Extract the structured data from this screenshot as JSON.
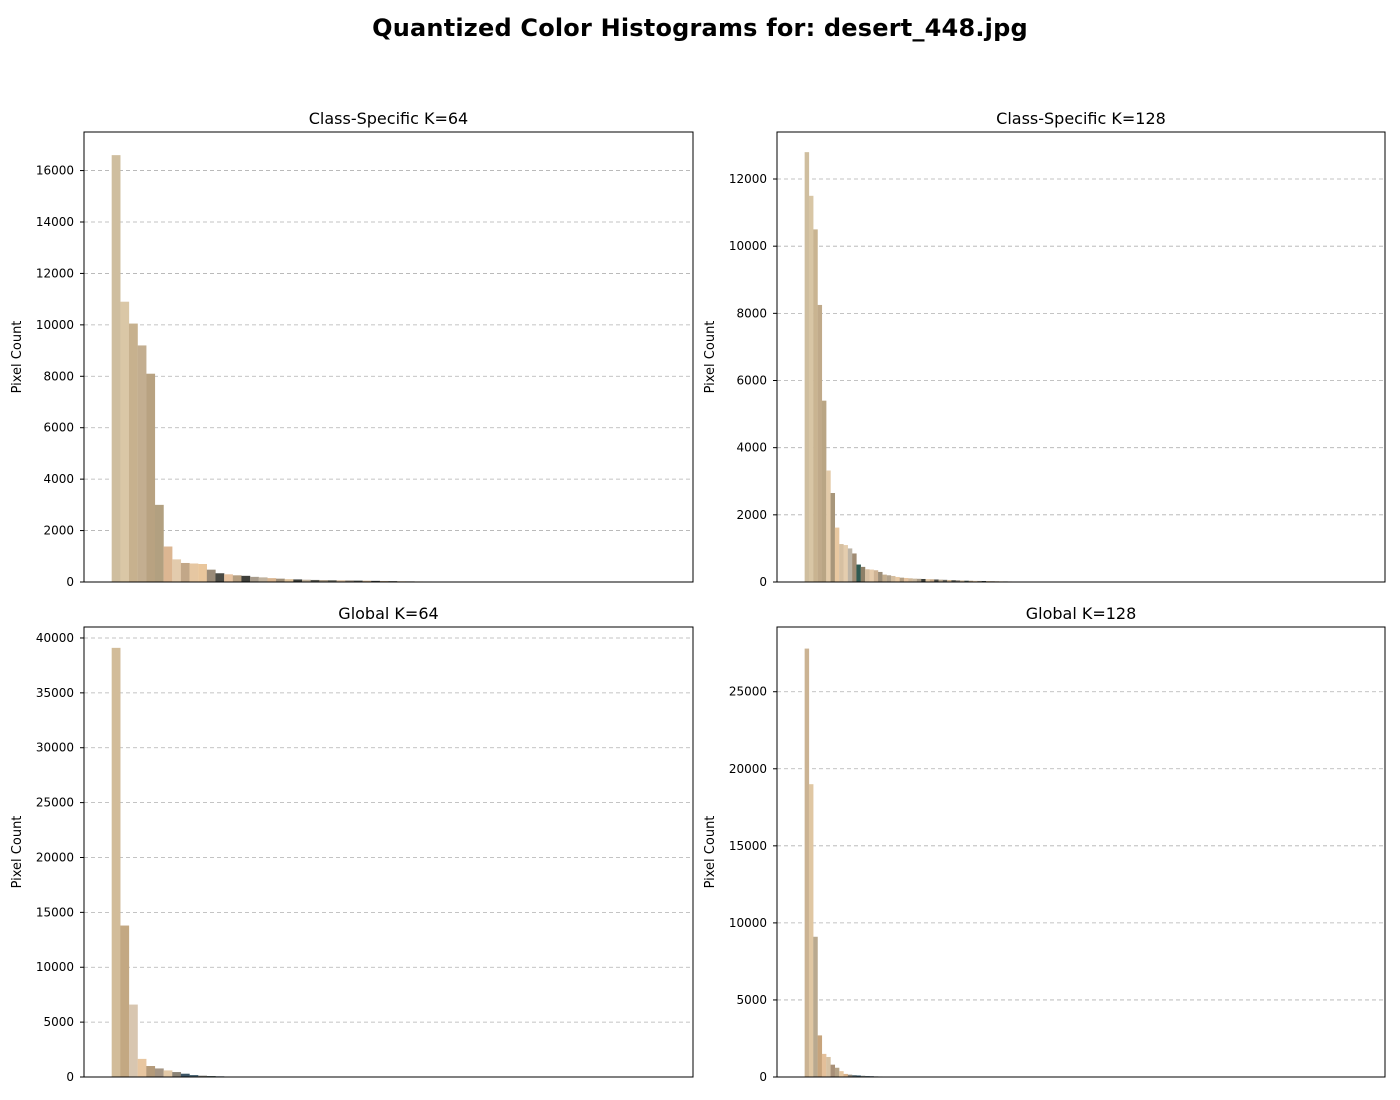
{
  "suptitle": "Quantized Color Histograms for: desert_448.jpg",
  "chart_data": [
    {
      "type": "bar",
      "title": "Class-Specific K=64",
      "xlabel": "",
      "ylabel": "Pixel Count",
      "ylim": [
        0,
        17500
      ],
      "yticks": [
        0,
        2000,
        4000,
        6000,
        8000,
        10000,
        12000,
        14000,
        16000
      ],
      "grid": "y-dashed",
      "n_bins": 64,
      "values": [
        16600,
        10900,
        10050,
        9200,
        8100,
        3000,
        1380,
        880,
        740,
        720,
        700,
        480,
        340,
        300,
        260,
        240,
        200,
        180,
        150,
        130,
        110,
        100,
        90,
        80,
        75,
        70,
        65,
        60,
        55,
        50,
        45,
        40,
        35,
        30,
        25,
        22,
        20,
        18,
        15,
        12
      ],
      "colors": [
        "#cfbe9f",
        "#dac7a6",
        "#c7b18e",
        "#c3ae90",
        "#b8a281",
        "#b2a080",
        "#dcb692",
        "#e3cbad",
        "#c2a788",
        "#e6c7a2",
        "#e9c69c",
        "#9a8b78",
        "#4a4a44",
        "#e8c3a0",
        "#b59e80",
        "#3e3f3a",
        "#a89c8c",
        "#c1b39f",
        "#d8b48f",
        "#9e8e78",
        "#e0c39b",
        "#3a3d38",
        "#bfb09a",
        "#5a5a52",
        "#a89a85",
        "#6a6a60",
        "#d1b596",
        "#8b8070",
        "#4f524c",
        "#c8a883",
        "#3c3f3b",
        "#b09a7e",
        "#5c5c55",
        "#d6bb98",
        "#7b7266",
        "#e2c9a6",
        "#a59580",
        "#4d4f49",
        "#c9b290",
        "#e5c39c"
      ]
    },
    {
      "type": "bar",
      "title": "Class-Specific K=128",
      "xlabel": "",
      "ylabel": "Pixel Count",
      "ylim": [
        0,
        13400
      ],
      "yticks": [
        0,
        2000,
        4000,
        6000,
        8000,
        10000,
        12000
      ],
      "grid": "y-dashed",
      "n_bins": 128,
      "values": [
        12800,
        11500,
        10500,
        8250,
        5400,
        3320,
        2650,
        1620,
        1130,
        1100,
        1000,
        850,
        520,
        450,
        380,
        370,
        350,
        300,
        220,
        200,
        180,
        150,
        130,
        120,
        110,
        100,
        95,
        90,
        85,
        80,
        75,
        70,
        65,
        60,
        55,
        50,
        45,
        40,
        38,
        35,
        32,
        30,
        28,
        25,
        22,
        20,
        18,
        16,
        14,
        12,
        10
      ],
      "colors": [
        "#cfbe9f",
        "#d8c6a5",
        "#c9b491",
        "#c0aa8a",
        "#b9a584",
        "#e3cba9",
        "#a8967a",
        "#e9c8a0",
        "#d6c0a2",
        "#e4cdae",
        "#bdb4a6",
        "#a08c74",
        "#2f5a52",
        "#8e8068",
        "#d9c1a3",
        "#e6cbab",
        "#cfb394",
        "#9c8e79",
        "#c4ae8f",
        "#b2a28c",
        "#d4bea0",
        "#e8c9a4",
        "#b49f83",
        "#e5c3a0",
        "#d0b89a",
        "#c9b89f",
        "#a89a86",
        "#3a3d38",
        "#e2c7a3",
        "#c7a987",
        "#4a4a44",
        "#b8a68e",
        "#6b6a62",
        "#d5b996",
        "#5b5e58",
        "#8a8276",
        "#cbb596",
        "#4c5a55",
        "#b79f80",
        "#e7cbab",
        "#9d917f",
        "#3e4540",
        "#d8bd9a",
        "#a99985",
        "#c2a68a",
        "#e0c5a2",
        "#7e766a",
        "#d2b597",
        "#b8a891",
        "#e4c7a3",
        "#cbb899"
      ]
    },
    {
      "type": "bar",
      "title": "Global K=64",
      "xlabel": "",
      "ylabel": "Pixel Count",
      "ylim": [
        0,
        41000
      ],
      "yticks": [
        0,
        5000,
        10000,
        15000,
        20000,
        25000,
        30000,
        35000,
        40000
      ],
      "grid": "y-dashed",
      "n_bins": 64,
      "values": [
        39100,
        13800,
        6600,
        1650,
        1000,
        780,
        600,
        450,
        300,
        180,
        120,
        90,
        60,
        40,
        25,
        15
      ],
      "colors": [
        "#d2bc99",
        "#c3a882",
        "#d8c6b0",
        "#e8c6a0",
        "#b49a7a",
        "#a59584",
        "#e3c9a7",
        "#8c8476",
        "#3c5566",
        "#4a6674",
        "#7a7a72",
        "#5d6e6a",
        "#2f4c5c",
        "#9e978b",
        "#3c4f5b",
        "#6a6e6a"
      ]
    },
    {
      "type": "bar",
      "title": "Global K=128",
      "xlabel": "",
      "ylabel": "Pixel Count",
      "ylim": [
        0,
        29200
      ],
      "yticks": [
        0,
        5000,
        10000,
        15000,
        20000,
        25000
      ],
      "grid": "y-dashed",
      "n_bins": 128,
      "values": [
        27800,
        19000,
        9100,
        2700,
        1500,
        1300,
        800,
        600,
        380,
        200,
        150,
        120,
        100,
        80,
        60,
        50,
        40,
        35,
        30,
        25,
        20,
        15
      ],
      "colors": [
        "#cbb393",
        "#e0c7a3",
        "#b9a98f",
        "#c7a47c",
        "#e4c09a",
        "#d7c2a4",
        "#a89078",
        "#b5a286",
        "#e6c7a1",
        "#d9b38c",
        "#8d8577",
        "#5c6e73",
        "#3a5868",
        "#7b8684",
        "#4e6470",
        "#2f4553",
        "#6d7a7b",
        "#8f9993",
        "#4b5c63",
        "#304b5b",
        "#3b5566",
        "#6a7a80"
      ]
    }
  ]
}
